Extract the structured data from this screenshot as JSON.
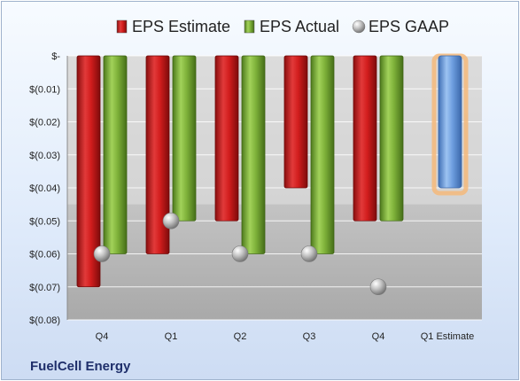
{
  "company_name": "FuelCell Energy",
  "colors": {
    "estimate": "#d32020",
    "actual": "#80b43a",
    "gaap": "#b0b0b0",
    "estimate_bar": "#6f9fe0",
    "highlight": "#f5b97a"
  },
  "chart_data": {
    "type": "bar",
    "title": "",
    "xlabel": "",
    "ylabel": "",
    "categories": [
      "Q4",
      "Q1",
      "Q2",
      "Q3",
      "Q4",
      "Q1 Estimate"
    ],
    "series": [
      {
        "name": "EPS Estimate",
        "values": [
          -0.07,
          -0.06,
          -0.05,
          -0.04,
          -0.05,
          -0.04
        ]
      },
      {
        "name": "EPS Actual",
        "values": [
          -0.06,
          -0.05,
          -0.06,
          -0.06,
          -0.05,
          null
        ]
      },
      {
        "name": "EPS GAAP",
        "values": [
          -0.06,
          -0.05,
          -0.06,
          -0.06,
          -0.07,
          null
        ]
      }
    ],
    "ylim": [
      -0.08,
      0
    ],
    "yticks": [
      0,
      -0.01,
      -0.02,
      -0.03,
      -0.04,
      -0.05,
      -0.06,
      -0.07,
      -0.08
    ],
    "ytick_labels": [
      "$-",
      "$(0.01)",
      "$(0.02)",
      "$(0.03)",
      "$(0.04)",
      "$(0.05)",
      "$(0.06)",
      "$(0.07)",
      "$(0.08)"
    ],
    "grid": true,
    "legend": "top"
  }
}
